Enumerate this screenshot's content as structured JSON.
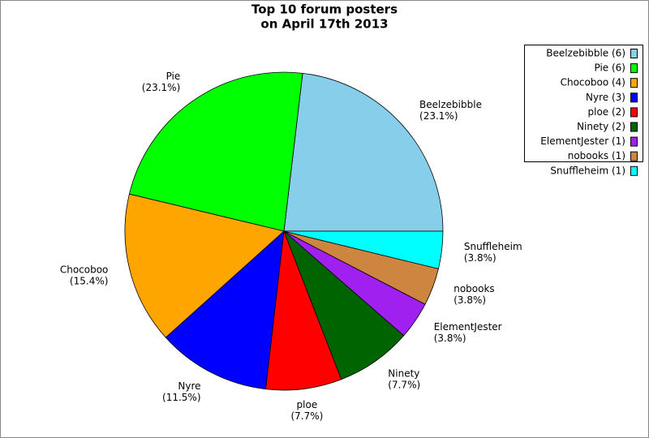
{
  "chart_data": {
    "type": "pie",
    "title": [
      "Top 10 forum posters",
      "on April 17th 2013"
    ],
    "categories": [
      "Beelzebibble",
      "Pie",
      "Chocoboo",
      "Nyre",
      "ploe",
      "Ninety",
      "ElementJester",
      "nobooks",
      "Snuffleheim"
    ],
    "values": [
      23.1,
      23.1,
      15.4,
      11.5,
      7.7,
      7.7,
      3.8,
      3.8,
      3.8
    ],
    "value_labels": [
      "(23.1%)",
      "(23.1%)",
      "(15.4%)",
      "(11.5%)",
      "(7.7%)",
      "(7.7%)",
      "(3.8%)",
      "(3.8%)",
      "(3.8%)"
    ],
    "legend_labels": [
      "Beelzebibble (6)",
      "Pie (6)",
      "Chocoboo (4)",
      "Nyre (3)",
      "ploe (2)",
      "Ninety (2)",
      "ElementJester (1)",
      "nobooks (1)",
      "Snuffleheim (1)"
    ],
    "colors": [
      "#87ceeb",
      "#00ff00",
      "#ffa500",
      "#0000ff",
      "#ff0000",
      "#006400",
      "#a020f0",
      "#cd853f",
      "#00ffff"
    ],
    "legend": "upper right"
  }
}
